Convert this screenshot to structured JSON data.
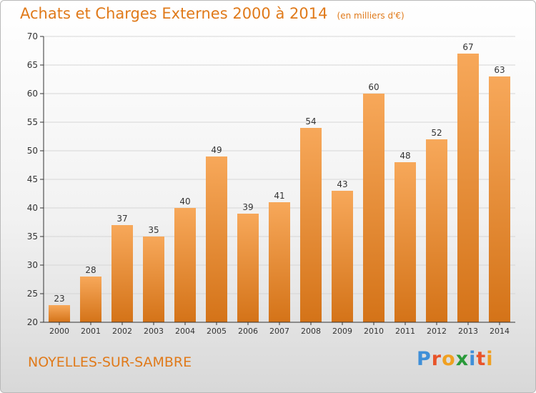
{
  "header": {
    "title": "Achats et Charges Externes 2000 à 2014",
    "unit": "(en milliers d'€)"
  },
  "footer": {
    "commune": "NOYELLES-SUR-SAMBRE",
    "logo_letters": [
      "P",
      "r",
      "o",
      "x",
      "i",
      "t",
      "i"
    ],
    "logo_colors": [
      "#3f8fd8",
      "#e8542a",
      "#f0a020",
      "#2a9a3a",
      "#3f8fd8",
      "#e8542a",
      "#f0a020"
    ]
  },
  "colors": {
    "bar_light": "#f7a85a",
    "bar_dark": "#d47318",
    "title": "#e07a1a",
    "axis": "#333333",
    "grid": "#d6d6d6"
  },
  "chart_data": {
    "type": "bar",
    "title": "Achats et Charges Externes 2000 à 2014",
    "subtitle": "(en milliers d'€)",
    "categories": [
      "2000",
      "2001",
      "2002",
      "2003",
      "2004",
      "2005",
      "2006",
      "2007",
      "2008",
      "2009",
      "2010",
      "2011",
      "2012",
      "2013",
      "2014"
    ],
    "values": [
      23,
      28,
      37,
      35,
      40,
      49,
      39,
      41,
      54,
      43,
      60,
      48,
      52,
      67,
      63
    ],
    "ylim": [
      20,
      70
    ],
    "yticks": [
      20,
      25,
      30,
      35,
      40,
      45,
      50,
      55,
      60,
      65,
      70
    ],
    "grid": true,
    "legend": "none",
    "data_labels": true
  }
}
